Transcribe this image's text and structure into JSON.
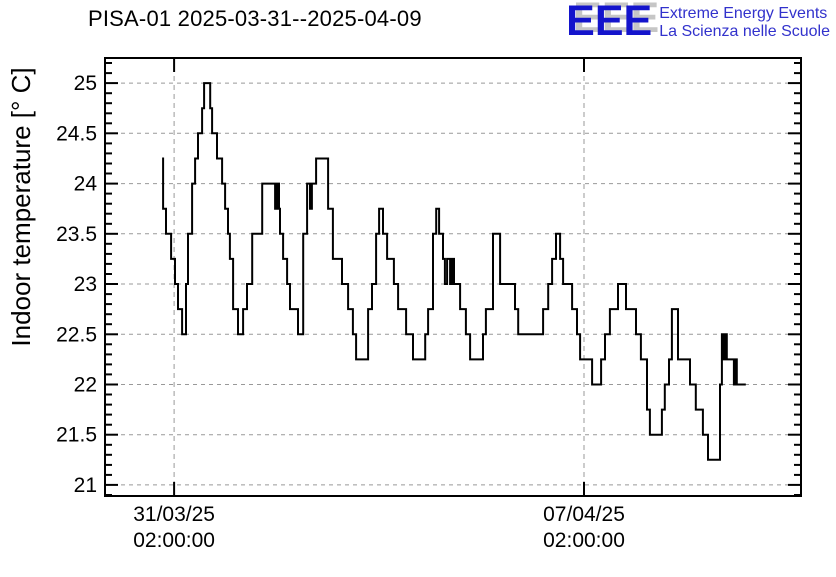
{
  "header": {
    "title": "PISA-01 2025-03-31--2025-04-09",
    "logo": {
      "acronym": "EEE",
      "line1": "Extreme Energy Events",
      "line2": "La Scienza nelle Scuole",
      "blue": "#1414cc",
      "text_blue": "#3232cc",
      "shadow_gray": "#c6c6c6"
    }
  },
  "chart_data": {
    "type": "line",
    "style": "step",
    "title": "PISA-01 2025-03-31--2025-04-09",
    "xlabel": "",
    "ylabel": "Indoor temperature [° C]",
    "line_color": "#000000",
    "grid": true,
    "grid_color": "#999999",
    "x_unit": "hours relative to 2025-03-31 02:00:00",
    "x_range": [
      -28.3,
      256.9
    ],
    "y_range": [
      20.89,
      25.25
    ],
    "y_ticks": [
      21,
      21.5,
      22,
      22.5,
      23,
      23.5,
      24,
      24.5,
      25
    ],
    "y_minor_step": 0.1,
    "x_ticks": [
      {
        "value": 0,
        "label_date": "31/03/25",
        "label_time": "02:00:00"
      },
      {
        "value": 168,
        "label_date": "07/04/25",
        "label_time": "02:00:00"
      }
    ],
    "points": [
      [
        -4.9,
        24.25
      ],
      [
        -4.5,
        23.75
      ],
      [
        -3.3,
        23.5
      ],
      [
        -1.2,
        23.25
      ],
      [
        0.4,
        23.0
      ],
      [
        1.6,
        22.75
      ],
      [
        3.3,
        22.5
      ],
      [
        4.9,
        23.0
      ],
      [
        5.7,
        23.5
      ],
      [
        7.4,
        24.0
      ],
      [
        8.6,
        24.25
      ],
      [
        9.8,
        24.5
      ],
      [
        11.5,
        24.75
      ],
      [
        12.3,
        25.0
      ],
      [
        14.8,
        24.75
      ],
      [
        15.6,
        24.5
      ],
      [
        17.6,
        24.25
      ],
      [
        19.7,
        24.0
      ],
      [
        20.9,
        23.75
      ],
      [
        22.1,
        23.5
      ],
      [
        22.9,
        23.25
      ],
      [
        24.2,
        22.75
      ],
      [
        26.2,
        22.5
      ],
      [
        28.3,
        22.75
      ],
      [
        29.9,
        23.0
      ],
      [
        32.0,
        23.5
      ],
      [
        36.1,
        24.0
      ],
      [
        41.4,
        23.75
      ],
      [
        42.2,
        24.0
      ],
      [
        43.0,
        23.75
      ],
      [
        43.4,
        23.5
      ],
      [
        44.7,
        23.25
      ],
      [
        46.3,
        23.0
      ],
      [
        47.5,
        22.75
      ],
      [
        50.8,
        22.5
      ],
      [
        52.9,
        23.5
      ],
      [
        54.5,
        24.0
      ],
      [
        55.7,
        23.75
      ],
      [
        56.5,
        24.0
      ],
      [
        58.2,
        24.25
      ],
      [
        63.1,
        23.75
      ],
      [
        65.1,
        23.25
      ],
      [
        68.8,
        23.0
      ],
      [
        71.3,
        22.75
      ],
      [
        73.3,
        22.5
      ],
      [
        74.6,
        22.25
      ],
      [
        79.5,
        22.75
      ],
      [
        81.1,
        23.0
      ],
      [
        82.8,
        23.5
      ],
      [
        84.0,
        23.75
      ],
      [
        85.6,
        23.5
      ],
      [
        87.3,
        23.25
      ],
      [
        90.1,
        23.0
      ],
      [
        91.8,
        22.75
      ],
      [
        95.1,
        22.5
      ],
      [
        97.9,
        22.25
      ],
      [
        102.9,
        22.5
      ],
      [
        104.1,
        22.75
      ],
      [
        106.1,
        23.5
      ],
      [
        107.4,
        23.75
      ],
      [
        108.6,
        23.5
      ],
      [
        110.2,
        23.25
      ],
      [
        111.0,
        23.0
      ],
      [
        111.9,
        23.25
      ],
      [
        113.1,
        23.0
      ],
      [
        113.9,
        23.25
      ],
      [
        114.7,
        23.0
      ],
      [
        117.2,
        22.75
      ],
      [
        119.6,
        22.5
      ],
      [
        121.3,
        22.25
      ],
      [
        126.6,
        22.5
      ],
      [
        127.8,
        22.75
      ],
      [
        130.7,
        23.5
      ],
      [
        133.6,
        23.0
      ],
      [
        139.7,
        22.75
      ],
      [
        141.0,
        22.5
      ],
      [
        151.2,
        22.75
      ],
      [
        153.3,
        23.0
      ],
      [
        154.9,
        23.25
      ],
      [
        156.5,
        23.5
      ],
      [
        158.2,
        23.25
      ],
      [
        159.4,
        23.0
      ],
      [
        163.1,
        22.75
      ],
      [
        165.1,
        22.5
      ],
      [
        166.4,
        22.25
      ],
      [
        171.3,
        22.0
      ],
      [
        175.0,
        22.25
      ],
      [
        176.6,
        22.5
      ],
      [
        178.6,
        22.75
      ],
      [
        181.9,
        23.0
      ],
      [
        185.2,
        22.75
      ],
      [
        189.3,
        22.5
      ],
      [
        191.3,
        22.25
      ],
      [
        193.8,
        21.75
      ],
      [
        195.0,
        21.5
      ],
      [
        199.9,
        21.75
      ],
      [
        201.1,
        22.0
      ],
      [
        202.8,
        22.25
      ],
      [
        204.0,
        22.75
      ],
      [
        206.5,
        22.25
      ],
      [
        211.4,
        22.0
      ],
      [
        213.8,
        21.75
      ],
      [
        216.7,
        21.5
      ],
      [
        218.8,
        21.25
      ],
      [
        223.7,
        22.0
      ],
      [
        224.5,
        22.5
      ],
      [
        225.3,
        22.25
      ],
      [
        225.7,
        22.5
      ],
      [
        226.5,
        22.25
      ],
      [
        229.4,
        22.0
      ],
      [
        229.8,
        22.25
      ],
      [
        230.6,
        22.0
      ],
      [
        234.3,
        22.0
      ]
    ]
  }
}
